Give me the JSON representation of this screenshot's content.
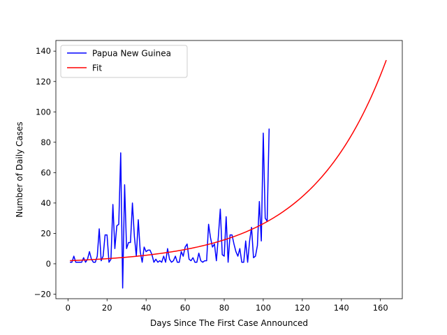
{
  "chart_data": {
    "type": "line",
    "title": "",
    "xlabel": "Days Since The First Case Announced",
    "ylabel": "Number of Daily Cases",
    "xlim": [
      -6.2,
      171.2
    ],
    "ylim": [
      -23,
      147
    ],
    "xticks": [
      0,
      20,
      40,
      60,
      80,
      100,
      120,
      140,
      160
    ],
    "yticks": [
      -20,
      0,
      20,
      40,
      60,
      80,
      100,
      120,
      140
    ],
    "grid": false,
    "legend_position": "top-left",
    "series": [
      {
        "name": "Papua New Guinea",
        "color": "#0000ff",
        "x": [
          1,
          2,
          3,
          4,
          5,
          6,
          7,
          8,
          9,
          10,
          11,
          12,
          13,
          14,
          15,
          16,
          17,
          18,
          19,
          20,
          21,
          22,
          23,
          24,
          25,
          26,
          27,
          28,
          29,
          30,
          31,
          32,
          33,
          34,
          35,
          36,
          37,
          38,
          39,
          40,
          41,
          42,
          43,
          44,
          45,
          46,
          47,
          48,
          49,
          50,
          51,
          52,
          53,
          54,
          55,
          56,
          57,
          58,
          59,
          60,
          61,
          62,
          63,
          64,
          65,
          66,
          67,
          68,
          69,
          70,
          71,
          72,
          73,
          74,
          75,
          76,
          77,
          78,
          79,
          80,
          81,
          82,
          83,
          84,
          85,
          86,
          87,
          88,
          89,
          90,
          91,
          92,
          93,
          94,
          95,
          96,
          97,
          98,
          99,
          100,
          101,
          102,
          103
        ],
        "y": [
          1,
          1,
          5,
          1,
          1,
          1,
          1,
          4,
          1,
          3,
          8,
          3,
          1,
          1,
          5,
          23,
          2,
          5,
          19,
          19,
          1,
          3,
          39,
          10,
          25,
          26,
          73,
          -16,
          52,
          10,
          14,
          14,
          40,
          18,
          5,
          29,
          8,
          1,
          11,
          8,
          9,
          9,
          6,
          1,
          3,
          1,
          2,
          1,
          5,
          1,
          10,
          3,
          1,
          2,
          5,
          1,
          1,
          8,
          5,
          11,
          13,
          3,
          2,
          4,
          1,
          1,
          7,
          2,
          1,
          2,
          2,
          26,
          17,
          11,
          13,
          2,
          18,
          36,
          6,
          5,
          31,
          1,
          19,
          19,
          13,
          8,
          5,
          10,
          1,
          1,
          15,
          1,
          15,
          24,
          4,
          5,
          12,
          41,
          15,
          86,
          30,
          28,
          89
        ]
      },
      {
        "name": "Fit",
        "color": "#ff0000",
        "fit": {
          "a": 2.0,
          "b": 0.0258
        },
        "x_range": [
          1,
          163
        ]
      }
    ]
  }
}
